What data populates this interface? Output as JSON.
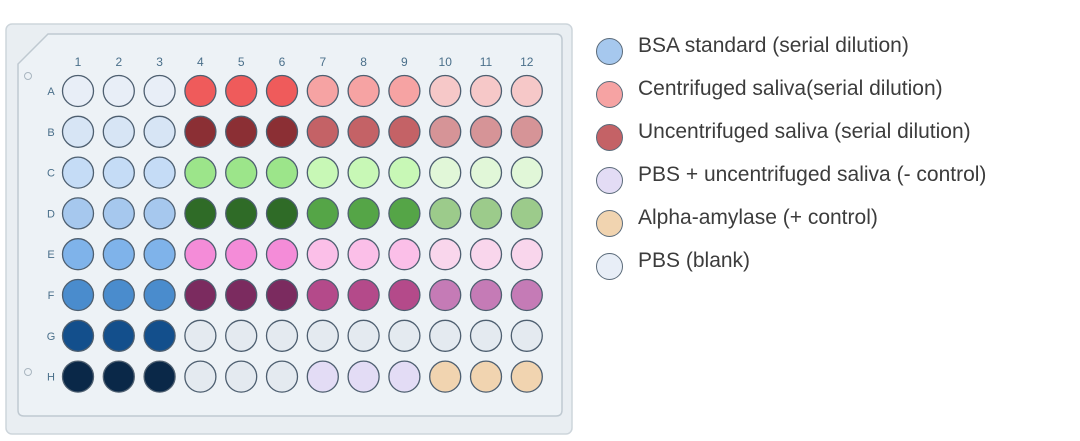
{
  "plate": {
    "columns": [
      "1",
      "2",
      "3",
      "4",
      "5",
      "6",
      "7",
      "8",
      "9",
      "10",
      "11",
      "12"
    ],
    "rows": [
      "A",
      "B",
      "C",
      "D",
      "E",
      "F",
      "G",
      "H"
    ],
    "wells": [
      [
        "#e8eef7",
        "#e8eef7",
        "#e8eef7",
        "#ef5b5b",
        "#ef5b5b",
        "#ef5b5b",
        "#f6a3a3",
        "#f6a3a3",
        "#f6a3a3",
        "#f6c8c8",
        "#f6c8c8",
        "#f6c8c8"
      ],
      [
        "#d7e5f5",
        "#d7e5f5",
        "#d7e5f5",
        "#8b2f34",
        "#8b2f34",
        "#8b2f34",
        "#c46266",
        "#c46266",
        "#c46266",
        "#d69497",
        "#d69497",
        "#d69497"
      ],
      [
        "#c5dcf6",
        "#c5dcf6",
        "#c5dcf6",
        "#9ce58a",
        "#9ce58a",
        "#9ce58a",
        "#c8f8b6",
        "#c8f8b6",
        "#c8f8b6",
        "#e1f7d8",
        "#e1f7d8",
        "#e1f7d8"
      ],
      [
        "#a6c8ee",
        "#a6c8ee",
        "#a6c8ee",
        "#2f6b27",
        "#2f6b27",
        "#2f6b27",
        "#55a547",
        "#55a547",
        "#55a547",
        "#9ccb8b",
        "#9ccb8b",
        "#9ccb8b"
      ],
      [
        "#7fb3ea",
        "#7fb3ea",
        "#7fb3ea",
        "#f48cd8",
        "#f48cd8",
        "#f48cd8",
        "#fbbfe8",
        "#fbbfe8",
        "#fbbfe8",
        "#f9d6ec",
        "#f9d6ec",
        "#f9d6ec"
      ],
      [
        "#4a8ccd",
        "#4a8ccd",
        "#4a8ccd",
        "#7b2b5f",
        "#7b2b5f",
        "#7b2b5f",
        "#b44a8a",
        "#b44a8a",
        "#b44a8a",
        "#c57bb6",
        "#c57bb6",
        "#c57bb6"
      ],
      [
        "#134f8c",
        "#134f8c",
        "#134f8c",
        "#e4eaf0",
        "#e4eaf0",
        "#e4eaf0",
        "#e4eaf0",
        "#e4eaf0",
        "#e4eaf0",
        "#e4eaf0",
        "#e4eaf0",
        "#e4eaf0"
      ],
      [
        "#0a2848",
        "#0a2848",
        "#0a2848",
        "#e4eaf0",
        "#e4eaf0",
        "#e4eaf0",
        "#e3dcf5",
        "#e3dcf5",
        "#e3dcf5",
        "#f1d4b0",
        "#f1d4b0",
        "#f1d4b0"
      ]
    ]
  },
  "legend": [
    {
      "label": "BSA standard (serial dilution)",
      "color": "#a6c8ee"
    },
    {
      "label": "Centrifuged saliva(serial dilution)",
      "color": "#f6a3a3"
    },
    {
      "label": "Uncentrifuged saliva (serial dilution)",
      "color": "#c46266"
    },
    {
      "label": "PBS + uncentrifuged saliva (- control)",
      "color": "#e3dcf5"
    },
    {
      "label": "Alpha-amylase (+ control)",
      "color": "#f1d4b0"
    },
    {
      "label": "PBS (blank)",
      "color": "#e8eef7"
    }
  ]
}
